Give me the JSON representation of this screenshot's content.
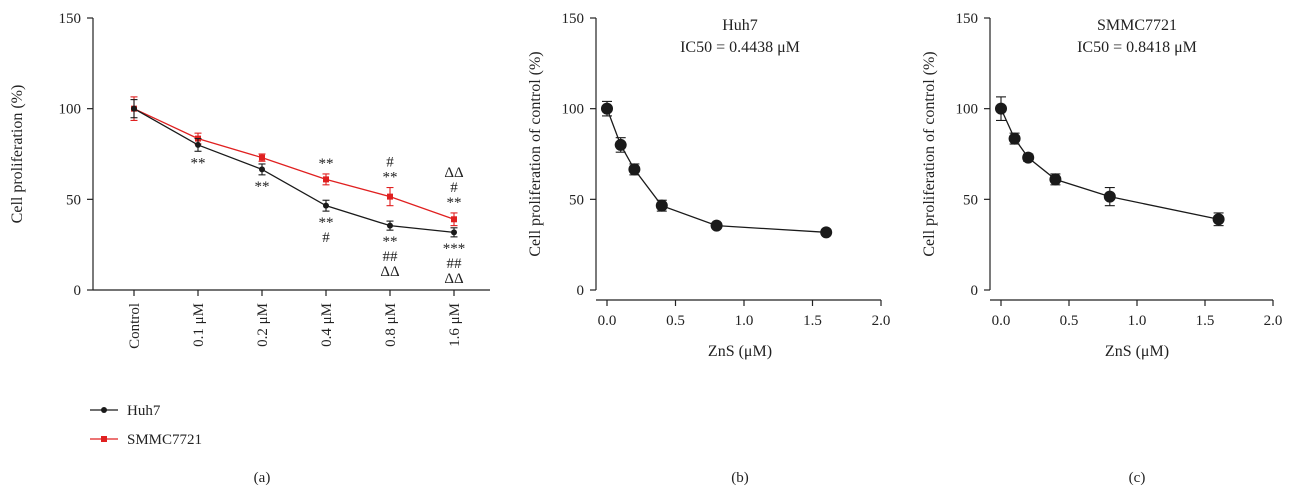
{
  "chart_data": [
    {
      "type": "line",
      "panel_label": "(a)",
      "title": "",
      "ylabel": "Cell proliferation (%)",
      "xlabel": "",
      "ylim": [
        0,
        150
      ],
      "yticks": [
        0,
        50,
        100,
        150
      ],
      "categories": [
        "Control",
        "0.1 μM",
        "0.2 μM",
        "0.4 μM",
        "0.8 μM",
        "1.6 μM"
      ],
      "series": [
        {
          "name": "Huh7",
          "color": "#1a1a1a",
          "marker": "circle",
          "values": [
            100,
            80,
            66.5,
            46.5,
            35.5,
            31.8
          ],
          "errors": [
            5,
            3.5,
            3,
            3,
            2.5,
            2.5
          ]
        },
        {
          "name": "SMMC7721",
          "color": "#e02020",
          "marker": "square",
          "values": [
            100,
            83.5,
            73,
            61,
            51.5,
            39
          ],
          "errors": [
            6.5,
            3,
            2,
            3,
            5,
            3.5
          ]
        }
      ],
      "annotations": [
        {
          "category": 1,
          "position": "below",
          "series": "Huh7",
          "lines": [
            "**"
          ]
        },
        {
          "category": 2,
          "position": "below",
          "series": "Huh7",
          "lines": [
            "**"
          ]
        },
        {
          "category": 3,
          "position": "below",
          "series": "Huh7",
          "lines": [
            "**",
            "#"
          ]
        },
        {
          "category": 4,
          "position": "below",
          "series": "Huh7",
          "lines": [
            "**",
            "##",
            "ΔΔ"
          ]
        },
        {
          "category": 5,
          "position": "below",
          "series": "Huh7",
          "lines": [
            "***",
            "##",
            "ΔΔ"
          ]
        },
        {
          "category": 3,
          "position": "above",
          "series": "SMMC7721",
          "lines": [
            "**"
          ]
        },
        {
          "category": 4,
          "position": "above",
          "series": "SMMC7721",
          "lines": [
            "#",
            "**"
          ]
        },
        {
          "category": 5,
          "position": "above",
          "series": "SMMC7721",
          "lines": [
            "ΔΔ",
            "#",
            "**"
          ]
        }
      ],
      "legend_position": "bottom-left"
    },
    {
      "type": "line",
      "panel_label": "(b)",
      "title": "Huh7",
      "subtitle": "IC50 = 0.4438 μM",
      "ylabel": "Cell proliferation of control (%)",
      "xlabel": "ZnS (μM)",
      "xlim": [
        0,
        2.0
      ],
      "ylim": [
        0,
        150
      ],
      "xticks": [
        "0.0",
        "0.5",
        "1.0",
        "1.5",
        "2.0"
      ],
      "yticks": [
        0,
        50,
        100,
        150
      ],
      "series": [
        {
          "name": "Huh7",
          "color": "#1a1a1a",
          "marker": "circle",
          "x": [
            0,
            0.1,
            0.2,
            0.4,
            0.8,
            1.6
          ],
          "values": [
            100,
            80,
            66.5,
            46.5,
            35.5,
            31.8
          ],
          "errors": [
            4,
            4,
            3,
            3,
            1.5,
            1.5
          ]
        }
      ]
    },
    {
      "type": "line",
      "panel_label": "(c)",
      "title": "SMMC7721",
      "subtitle": "IC50 = 0.8418 μM",
      "ylabel": "Cell proliferation of control (%)",
      "xlabel": "ZnS (μM)",
      "xlim": [
        0,
        2.0
      ],
      "ylim": [
        0,
        150
      ],
      "xticks": [
        "0.0",
        "0.5",
        "1.0",
        "1.5",
        "2.0"
      ],
      "yticks": [
        0,
        50,
        100,
        150
      ],
      "series": [
        {
          "name": "SMMC7721",
          "color": "#1a1a1a",
          "marker": "circle",
          "x": [
            0,
            0.1,
            0.2,
            0.4,
            0.8,
            1.6
          ],
          "values": [
            100,
            83.5,
            73,
            61,
            51.5,
            39
          ],
          "errors": [
            6.5,
            3,
            2,
            3,
            5,
            3.5
          ]
        }
      ]
    }
  ]
}
